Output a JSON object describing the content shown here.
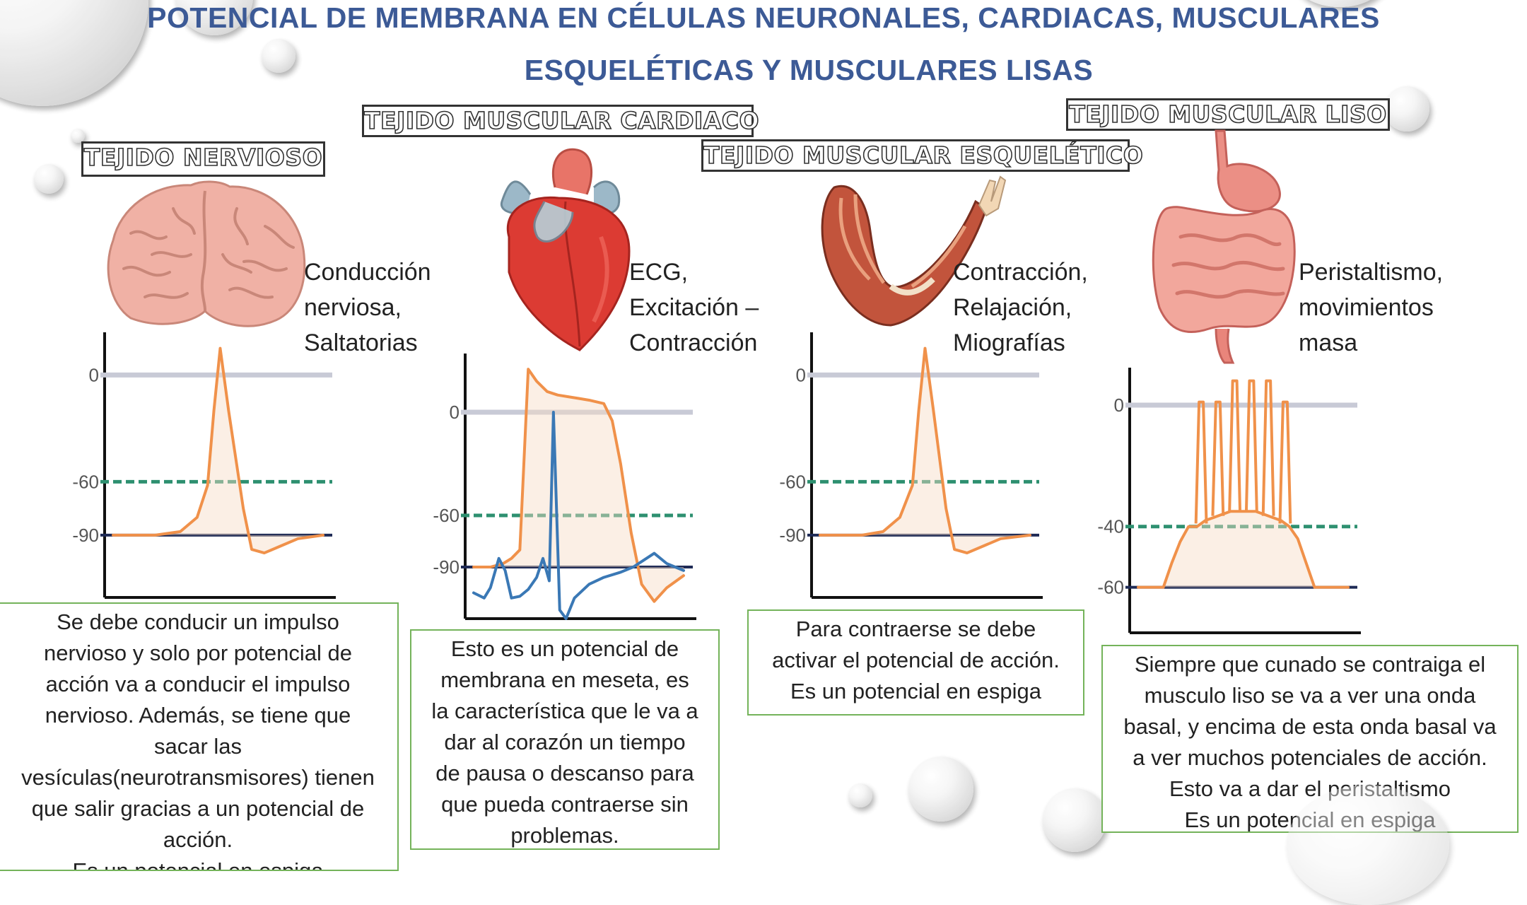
{
  "title": {
    "line1": "POTENCIAL DE MEMBRANA EN CÉLULAS NEURONALES, CARDIACAS, MUSCULARES",
    "line2": "ESQUELÉTICAS Y MUSCULARES LISAS"
  },
  "colors": {
    "title": "#3c5a96",
    "action_potential": "#f0914a",
    "ecg": "#3a78b5",
    "threshold": "#2e9070",
    "resting": "#1e2a55",
    "zero_line": "#c8cad6",
    "box_border": "#74b35a"
  },
  "sections": [
    {
      "label": "TEJIDO NERVIOSO",
      "icon": "brain-icon",
      "desc": [
        "Conducción",
        "nerviosa,",
        "Saltatorias"
      ],
      "text": [
        "Se debe conducir un impulso",
        "nervioso y solo por potencial de",
        "acción va a conducir el impulso",
        "nervioso. Además, se tiene que",
        "sacar las",
        "vesículas(neurotransmisores) tienen",
        "que salir gracias a un potencial de",
        "acción.",
        "Es un potencial en espiga"
      ]
    },
    {
      "label": "TEJIDO MUSCULAR CARDIACO",
      "icon": "heart-icon",
      "desc": [
        "ECG,",
        "Excitación –",
        "Contracción"
      ],
      "text": [
        "Esto es un potencial de",
        "membrana en meseta, es",
        "la característica que le va a",
        "dar al corazón un tiempo",
        "de pausa o descanso para",
        "que pueda contraerse sin",
        "problemas."
      ]
    },
    {
      "label": "TEJIDO MUSCULAR ESQUELÉTICO",
      "icon": "arm-muscle-icon",
      "desc": [
        "Contracción,",
        "Relajación,",
        "Miografías"
      ],
      "text": [
        "Para contraerse se debe",
        "activar el potencial de acción.",
        "Es un potencial en espiga"
      ]
    },
    {
      "label": "TEJIDO MUSCULAR LISO",
      "icon": "digestive-tract-icon",
      "desc": [
        "Peristaltismo,",
        "movimientos",
        "masa"
      ],
      "text": [
        "Siempre que cunado se contraiga el",
        "musculo liso se va a ver una onda",
        "basal, y encima de esta onda basal va",
        "a ver muchos potenciales de acción.",
        "Esto va a dar el peristaltismo",
        "Es un potencial en espiga"
      ]
    }
  ],
  "chart_data": [
    {
      "type": "line",
      "name": "nervioso",
      "yticks": [
        "0",
        "-60",
        "-90"
      ],
      "ylim": [
        -125,
        20
      ],
      "reference_lines": [
        0,
        -60,
        -90
      ],
      "series": [
        {
          "x": [
            0,
            20,
            32,
            40,
            45,
            48,
            51,
            55,
            62,
            66,
            72,
            80,
            88,
            100
          ],
          "y": [
            -90,
            -90,
            -88,
            -80,
            -62,
            -20,
            15,
            -20,
            -75,
            -98,
            -100,
            -96,
            -92,
            -90
          ]
        }
      ]
    },
    {
      "type": "line",
      "name": "cardiaco",
      "yticks": [
        "0",
        "-60",
        "-90"
      ],
      "ylim": [
        -120,
        30
      ],
      "reference_lines": [
        0,
        -60,
        -90
      ],
      "series": [
        {
          "x": [
            0,
            8,
            14,
            18,
            22,
            26,
            30,
            35,
            40,
            45,
            50,
            55,
            62,
            66,
            70,
            75,
            80,
            86,
            92,
            100
          ],
          "y": [
            -90,
            -90,
            -88,
            -85,
            -80,
            25,
            18,
            12,
            10,
            9,
            8,
            7,
            5,
            -5,
            -30,
            -70,
            -100,
            -110,
            -102,
            -95
          ]
        },
        {
          "x": [
            0,
            5,
            8,
            12,
            15,
            18,
            22,
            26,
            30,
            33,
            36,
            38,
            41,
            44,
            48,
            55,
            62,
            70,
            76,
            81,
            86,
            92,
            100
          ],
          "y": [
            -105,
            -108,
            -102,
            -85,
            -92,
            -108,
            -107,
            -103,
            -96,
            -85,
            -98,
            0,
            -115,
            -120,
            -108,
            -100,
            -96,
            -93,
            -90,
            -86,
            -82,
            -88,
            -92
          ]
        }
      ]
    },
    {
      "type": "line",
      "name": "esqueletico",
      "yticks": [
        "0",
        "-60",
        "-90"
      ],
      "ylim": [
        -125,
        20
      ],
      "reference_lines": [
        0,
        -60,
        -90
      ],
      "series": [
        {
          "x": [
            0,
            20,
            30,
            38,
            44,
            47,
            50,
            54,
            60,
            64,
            70,
            78,
            86,
            100
          ],
          "y": [
            -90,
            -90,
            -88,
            -80,
            -62,
            -20,
            15,
            -20,
            -75,
            -98,
            -100,
            -96,
            -92,
            -90
          ]
        }
      ]
    },
    {
      "type": "line",
      "name": "liso",
      "yticks": [
        "0",
        "-40",
        "-60"
      ],
      "ylim": [
        -75,
        10
      ],
      "reference_lines": [
        0,
        -40,
        -60
      ],
      "series": [
        {
          "x": [
            0,
            12,
            16,
            20,
            24,
            28,
            32,
            36,
            40,
            44,
            48,
            52,
            56,
            60,
            64,
            68,
            72,
            76,
            80,
            84,
            88,
            100
          ],
          "y": [
            -60,
            -60,
            -52,
            -45,
            -40,
            -40,
            -38,
            -37,
            -36,
            -35,
            -35,
            -35,
            -35,
            -36,
            -37,
            -38,
            -40,
            -44,
            -52,
            -60,
            -60,
            -60
          ]
        }
      ]
    }
  ]
}
